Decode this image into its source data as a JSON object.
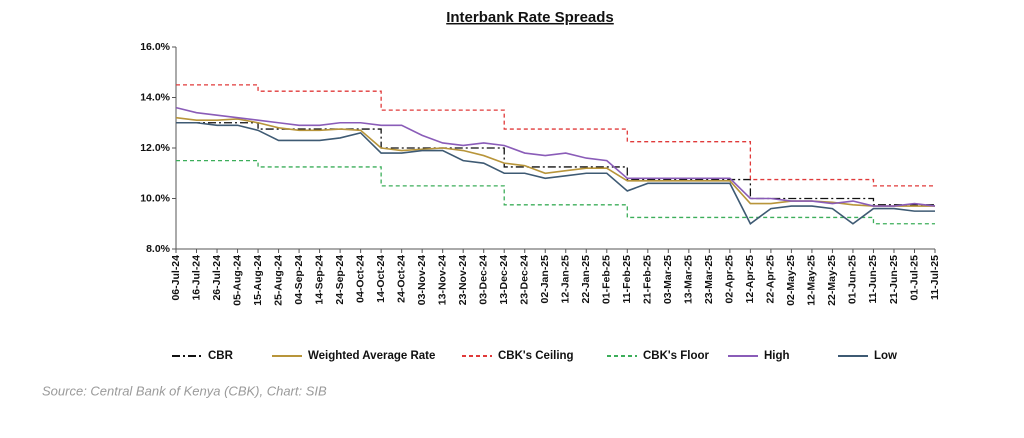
{
  "chart_data": {
    "type": "line",
    "title": "Interbank Rate Spreads",
    "categories": [
      "06-Jul-24",
      "16-Jul-24",
      "26-Jul-24",
      "05-Aug-24",
      "15-Aug-24",
      "25-Aug-24",
      "04-Sep-24",
      "14-Sep-24",
      "24-Sep-24",
      "04-Oct-24",
      "14-Oct-24",
      "24-Oct-24",
      "03-Nov-24",
      "13-Nov-24",
      "23-Nov-24",
      "03-Dec-24",
      "13-Dec-24",
      "23-Dec-24",
      "02-Jan-25",
      "12-Jan-25",
      "22-Jan-25",
      "01-Feb-25",
      "11-Feb-25",
      "21-Feb-25",
      "03-Mar-25",
      "13-Mar-25",
      "23-Mar-25",
      "02-Apr-25",
      "12-Apr-25",
      "22-Apr-25",
      "02-May-25",
      "12-May-25",
      "22-May-25",
      "01-Jun-25",
      "11-Jun-25",
      "21-Jun-25",
      "01-Jul-25",
      "11-Jul-25"
    ],
    "series": [
      {
        "name": "CBR",
        "color": "#111111",
        "line_style": "dash-dot",
        "step": true,
        "values": [
          13,
          13,
          13,
          13,
          12.75,
          12.75,
          12.75,
          12.75,
          12.75,
          12.75,
          12,
          12,
          12,
          12,
          12,
          12,
          11.25,
          11.25,
          11.25,
          11.25,
          11.25,
          11.25,
          10.75,
          10.75,
          10.75,
          10.75,
          10.75,
          10.75,
          10,
          10,
          10,
          10,
          10,
          10,
          9.75,
          9.75,
          9.75,
          9.75
        ]
      },
      {
        "name": "Weighted Average Rate",
        "color": "#b8953a",
        "line_style": "solid",
        "values": [
          13.2,
          13.1,
          13.1,
          13.15,
          13.0,
          12.8,
          12.7,
          12.7,
          12.75,
          12.7,
          12.0,
          11.9,
          11.95,
          12.0,
          11.9,
          11.7,
          11.4,
          11.3,
          11.0,
          11.1,
          11.2,
          11.2,
          10.7,
          10.7,
          10.7,
          10.7,
          10.7,
          10.7,
          9.8,
          9.8,
          9.9,
          9.9,
          9.85,
          9.75,
          9.7,
          9.7,
          9.7,
          9.7
        ]
      },
      {
        "name": "CBK's Ceiling",
        "color": "#e03a3a",
        "line_style": "dashed",
        "step": true,
        "values": [
          14.5,
          14.5,
          14.5,
          14.5,
          14.25,
          14.25,
          14.25,
          14.25,
          14.25,
          14.25,
          13.5,
          13.5,
          13.5,
          13.5,
          13.5,
          13.5,
          12.75,
          12.75,
          12.75,
          12.75,
          12.75,
          12.75,
          12.25,
          12.25,
          12.25,
          12.25,
          12.25,
          12.25,
          10.75,
          10.75,
          10.75,
          10.75,
          10.75,
          10.75,
          10.5,
          10.5,
          10.5,
          10.5
        ]
      },
      {
        "name": "CBK's Floor",
        "color": "#3cae5a",
        "line_style": "dashed",
        "step": true,
        "values": [
          11.5,
          11.5,
          11.5,
          11.5,
          11.25,
          11.25,
          11.25,
          11.25,
          11.25,
          11.25,
          10.5,
          10.5,
          10.5,
          10.5,
          10.5,
          10.5,
          9.75,
          9.75,
          9.75,
          9.75,
          9.75,
          9.75,
          9.25,
          9.25,
          9.25,
          9.25,
          9.25,
          9.25,
          9.25,
          9.25,
          9.25,
          9.25,
          9.25,
          9.25,
          9,
          9,
          9,
          9
        ]
      },
      {
        "name": "High",
        "color": "#8a5cb8",
        "line_style": "solid",
        "values": [
          13.6,
          13.4,
          13.3,
          13.2,
          13.1,
          13.0,
          12.9,
          12.9,
          13.0,
          13.0,
          12.9,
          12.9,
          12.5,
          12.2,
          12.1,
          12.2,
          12.1,
          11.8,
          11.7,
          11.8,
          11.6,
          11.5,
          10.8,
          10.8,
          10.8,
          10.8,
          10.8,
          10.8,
          10.0,
          10.0,
          9.9,
          9.9,
          9.8,
          9.9,
          9.7,
          9.7,
          9.8,
          9.7
        ]
      },
      {
        "name": "Low",
        "color": "#3e5a73",
        "line_style": "solid",
        "values": [
          13.0,
          13.0,
          12.9,
          12.9,
          12.7,
          12.3,
          12.3,
          12.3,
          12.4,
          12.6,
          11.8,
          11.8,
          11.9,
          11.9,
          11.5,
          11.4,
          11.0,
          11.0,
          10.8,
          10.9,
          11.0,
          11.0,
          10.3,
          10.6,
          10.6,
          10.6,
          10.6,
          10.6,
          9.0,
          9.6,
          9.7,
          9.7,
          9.6,
          9.0,
          9.6,
          9.6,
          9.5,
          9.5
        ]
      }
    ],
    "ylim": [
      8,
      16
    ],
    "yticks": [
      {
        "value": 8,
        "label": "8.0%"
      },
      {
        "value": 10,
        "label": "10.0%"
      },
      {
        "value": 12,
        "label": "12.0%"
      },
      {
        "value": 14,
        "label": "14.0%"
      },
      {
        "value": 16,
        "label": "16.0%"
      }
    ],
    "legend": "bottom",
    "source": "Source: Central Bank of Kenya (CBK), Chart: SIB"
  }
}
